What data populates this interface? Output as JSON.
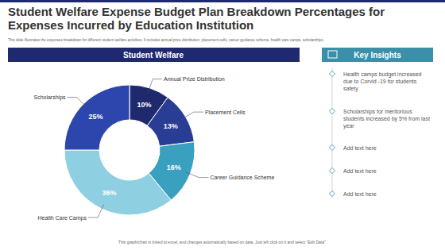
{
  "chart_data": {
    "type": "pie",
    "title": "Student Welfare Expense Budget Plan Breakdown Percentages for Expenses Incurred by Education Institution",
    "subtitle": "This slide illustrates the expenses breakdown for different student welfare activities. It includes annual price distribution, placement cells, career guidance scheme, health care camps, scholarships.",
    "panel_title": "Student Welfare",
    "categories": [
      "Annual Prize Distribution",
      "Placement Cells",
      "Career Guidance Scheme",
      "Health Care Camps",
      "Scholarships"
    ],
    "values": [
      10,
      13,
      16,
      36,
      25
    ],
    "value_labels": [
      "10%",
      "13%",
      "16%",
      "36%",
      "25%"
    ],
    "colors": [
      "#1f2a6e",
      "#2a3d94",
      "#3aa0c0",
      "#8fcfe2",
      "#2c46ad"
    ],
    "data_labels": true
  },
  "insights": {
    "title": "Key Insights",
    "items": [
      "Health camps budget increased due to Corvid -19 for students safety",
      "Scholarships for meritorious students increased by 5% from last year",
      "Add text here",
      "Add text here",
      "Add text here"
    ]
  },
  "footer": "This graph/chart is linked to excel, and changes automatically based on data. Just left click on it and select \"Edit Data\"."
}
